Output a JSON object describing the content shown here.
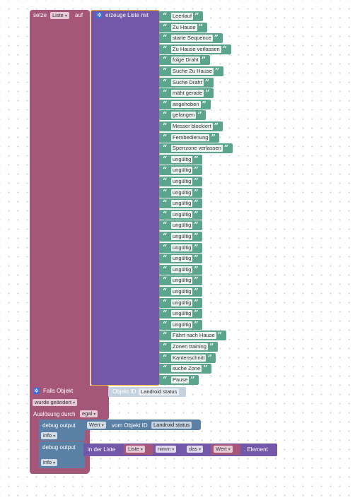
{
  "set_block": {
    "prefix": "setze",
    "var_name": "Liste",
    "suffix": "auf"
  },
  "list_block": {
    "label": "erzeuge Liste mit",
    "items": [
      "Leerlauf",
      "Zu Hause",
      "starte Sequence",
      "Zu Hause verlassen",
      "folge Draht",
      "Suche Zu Hause",
      "Suche Draht",
      "mäht gerade",
      "angehoben",
      "gefangen",
      "Messer blockiert",
      "Fernbedienung",
      "Sperrzone verlassen",
      "ungültig",
      "ungültig",
      "ungültig",
      "ungültig",
      "ungültig",
      "ungültig",
      "ungültig",
      "ungültig",
      "ungültig",
      "ungültig",
      "ungültig",
      "ungültig",
      "ungültig",
      "ungültig",
      "ungültig",
      "ungültig",
      "Fährt nach Hause",
      "Zonen training",
      "Kantenschnitt",
      "suche Zone",
      "Pause"
    ]
  },
  "trigger": {
    "label": "Falls Objekt",
    "object_id_label": "Objekt ID",
    "object_id_value": "Landroid status",
    "changed": "wurde geändert",
    "trigger_label": "Auslösung durch",
    "trigger_value": "egal"
  },
  "debug1": {
    "label": "debug output",
    "value_dd": "Wert",
    "from_object": "vom Objekt ID",
    "object_value": "Landroid status",
    "level": "info"
  },
  "debug2": {
    "label": "debug output",
    "in_list": "in der Liste",
    "list_var": "Liste",
    "take": "nimm",
    "which": "das",
    "value_var": "Wert",
    "element": ". Element",
    "level": "info"
  },
  "colors": {
    "variables": "#a5577a",
    "lists": "#7357a8",
    "text": "#5ba58c",
    "debug": "#5b80a5",
    "selection": "#f2b134"
  },
  "icons": {
    "gear": "gear-icon",
    "dropdown": "chevron-down-icon"
  }
}
